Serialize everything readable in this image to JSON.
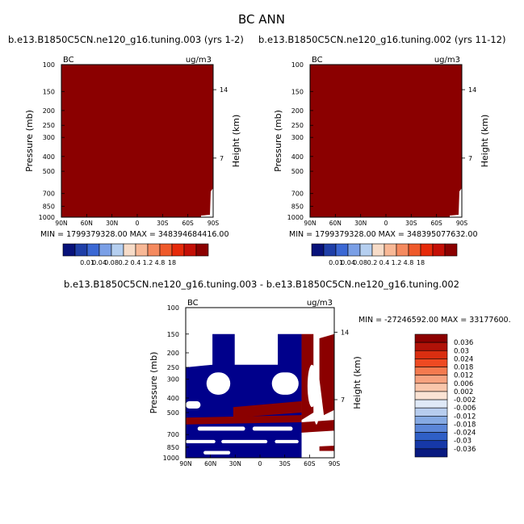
{
  "figure": {
    "title": "BC ANN"
  },
  "chart_data": [
    {
      "type": "heatmap",
      "title": "b.e13.B1850C5CN.ne120_g16.tuning.003 (yrs 1-2)",
      "corner_left": "BC",
      "corner_right": "ug/m3",
      "xlabel": "",
      "ylabel": "Pressure (mb)",
      "ylabel_right": "Height (km)",
      "x_ticks": [
        "90N",
        "60N",
        "30N",
        "0",
        "30S",
        "60S",
        "90S"
      ],
      "y_ticks": [
        "100",
        "150",
        "200",
        "250",
        "300",
        "400",
        "500",
        "700",
        "850",
        "1000"
      ],
      "y2_ticks": [
        "14",
        "7"
      ],
      "stats": "MIN = 1799379328.00    MAX = 348394684416.00",
      "fill_color": "#8b0000",
      "colorbar_labels": [
        "0.01",
        "0.04",
        "0.08",
        "0.2",
        "0.4",
        "1.2",
        "4.8",
        "18"
      ],
      "colorbar_colors": [
        "#08127a",
        "#1f3fa8",
        "#3b68d4",
        "#7a9fe6",
        "#b5cff0",
        "#f7dcc8",
        "#f8b896",
        "#f58a5f",
        "#ef5a2b",
        "#e62a0a",
        "#c40f06",
        "#8b0000"
      ]
    },
    {
      "type": "heatmap",
      "title": "b.e13.B1850C5CN.ne120_g16.tuning.002 (yrs 11-12)",
      "corner_left": "BC",
      "corner_right": "ug/m3",
      "xlabel": "",
      "ylabel": "Pressure (mb)",
      "ylabel_right": "Height (km)",
      "x_ticks": [
        "90N",
        "60N",
        "30N",
        "0",
        "30S",
        "60S",
        "90S"
      ],
      "y_ticks": [
        "100",
        "150",
        "200",
        "250",
        "300",
        "400",
        "500",
        "700",
        "850",
        "1000"
      ],
      "y2_ticks": [
        "14",
        "7"
      ],
      "stats": "MIN = 1799379328.00    MAX = 348395077632.00",
      "fill_color": "#8b0000",
      "colorbar_labels": [
        "0.01",
        "0.04",
        "0.08",
        "0.2",
        "0.4",
        "1.2",
        "4.8",
        "18"
      ],
      "colorbar_colors": [
        "#08127a",
        "#1f3fa8",
        "#3b68d4",
        "#7a9fe6",
        "#b5cff0",
        "#f7dcc8",
        "#f8b896",
        "#f58a5f",
        "#ef5a2b",
        "#e62a0a",
        "#c40f06",
        "#8b0000"
      ]
    },
    {
      "type": "heatmap",
      "title": "b.e13.B1850C5CN.ne120_g16.tuning.003 - b.e13.B1850C5CN.ne120_g16.tuning.002",
      "corner_left": "BC",
      "corner_right": "ug/m3",
      "xlabel": "",
      "ylabel": "Pressure (mb)",
      "ylabel_right": "Height (km)",
      "x_ticks": [
        "90N",
        "60N",
        "30N",
        "0",
        "30S",
        "60S",
        "90S"
      ],
      "y_ticks": [
        "100",
        "150",
        "200",
        "250",
        "300",
        "400",
        "500",
        "700",
        "850",
        "1000"
      ],
      "y2_ticks": [
        "14",
        "7"
      ],
      "stats": "MIN = -27246592.00    MAX = 33177600.",
      "colorbar_labels": [
        "0.036",
        "0.03",
        "0.024",
        "0.018",
        "0.012",
        "0.006",
        "0.002",
        "-0.002",
        "-0.006",
        "-0.012",
        "-0.018",
        "-0.024",
        "-0.03",
        "-0.036"
      ],
      "colorbar_colors": [
        "#8b0000",
        "#b01208",
        "#d92e10",
        "#ee4a22",
        "#f47a4f",
        "#f7a27f",
        "#f9c6ab",
        "#fbe3d4",
        "#dfe9f7",
        "#b7cdee",
        "#86aae3",
        "#5b86d8",
        "#2f5fc6",
        "#1638a8",
        "#091a80"
      ],
      "pattern_colors": {
        "positive": "#8b0000",
        "negative": "#00008b"
      }
    }
  ]
}
